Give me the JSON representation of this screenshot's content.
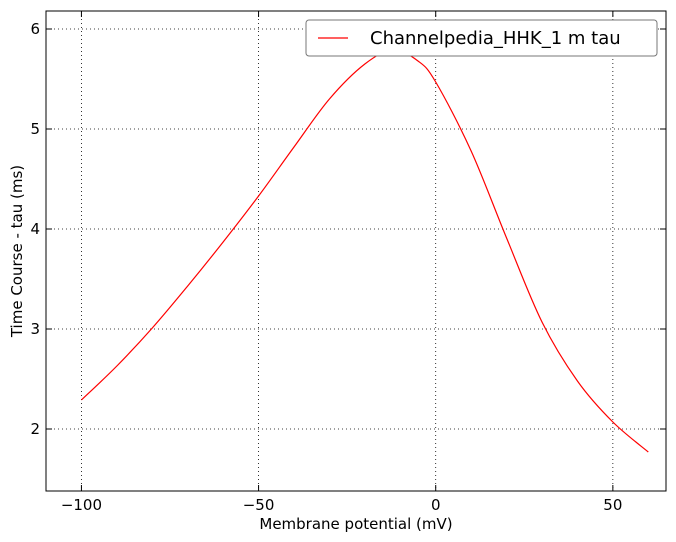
{
  "chart_data": {
    "type": "line",
    "title": "",
    "xlabel": "Membrane potential (mV)",
    "ylabel": "Time Course - tau (ms)",
    "xlim": [
      -110,
      65
    ],
    "ylim": [
      1.38,
      6.18
    ],
    "xticks": [
      -100,
      -50,
      0,
      50
    ],
    "xtick_labels": [
      "−100",
      "−50",
      "0",
      "50"
    ],
    "yticks": [
      2,
      3,
      4,
      5,
      6
    ],
    "ytick_labels": [
      "2",
      "3",
      "4",
      "5",
      "6"
    ],
    "grid": true,
    "legend_placement": "top-right",
    "series": [
      {
        "name": "Channelpedia_HHK_1 m tau",
        "color": "#ff0000",
        "x": [
          -100,
          -90,
          -80,
          -70,
          -60,
          -50,
          -40,
          -30,
          -20,
          -12,
          -5,
          0,
          10,
          20,
          30,
          40,
          50,
          60
        ],
        "y": [
          2.29,
          2.63,
          3.01,
          3.43,
          3.87,
          4.33,
          4.82,
          5.3,
          5.65,
          5.79,
          5.68,
          5.47,
          4.78,
          3.91,
          3.07,
          2.48,
          2.07,
          1.77
        ]
      }
    ]
  }
}
